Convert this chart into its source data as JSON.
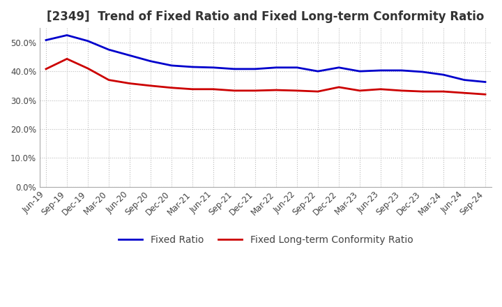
{
  "title": "[2349]  Trend of Fixed Ratio and Fixed Long-term Conformity Ratio",
  "x_labels": [
    "Jun-19",
    "Sep-19",
    "Dec-19",
    "Mar-20",
    "Jun-20",
    "Sep-20",
    "Dec-20",
    "Mar-21",
    "Jun-21",
    "Sep-21",
    "Dec-21",
    "Mar-22",
    "Jun-22",
    "Sep-22",
    "Dec-22",
    "Mar-23",
    "Jun-23",
    "Sep-23",
    "Dec-23",
    "Mar-24",
    "Jun-24",
    "Sep-24"
  ],
  "fixed_ratio": [
    0.508,
    0.525,
    0.505,
    0.475,
    0.455,
    0.435,
    0.42,
    0.415,
    0.413,
    0.408,
    0.408,
    0.413,
    0.413,
    0.4,
    0.413,
    0.4,
    0.403,
    0.403,
    0.398,
    0.388,
    0.37,
    0.363
  ],
  "fixed_lt_ratio": [
    0.408,
    0.443,
    0.41,
    0.37,
    0.358,
    0.35,
    0.343,
    0.338,
    0.338,
    0.333,
    0.333,
    0.335,
    0.333,
    0.33,
    0.345,
    0.333,
    0.338,
    0.333,
    0.33,
    0.33,
    0.325,
    0.32
  ],
  "fixed_ratio_color": "#0000cc",
  "fixed_lt_ratio_color": "#cc0000",
  "ylim": [
    0.0,
    0.55
  ],
  "yticks": [
    0.0,
    0.1,
    0.2,
    0.3,
    0.4,
    0.5
  ],
  "grid_color": "#bbbbbb",
  "background_color": "#ffffff",
  "legend_fixed": "Fixed Ratio",
  "legend_fixed_lt": "Fixed Long-term Conformity Ratio",
  "title_fontsize": 12,
  "tick_fontsize": 8.5,
  "legend_fontsize": 10,
  "line_width": 2.0
}
